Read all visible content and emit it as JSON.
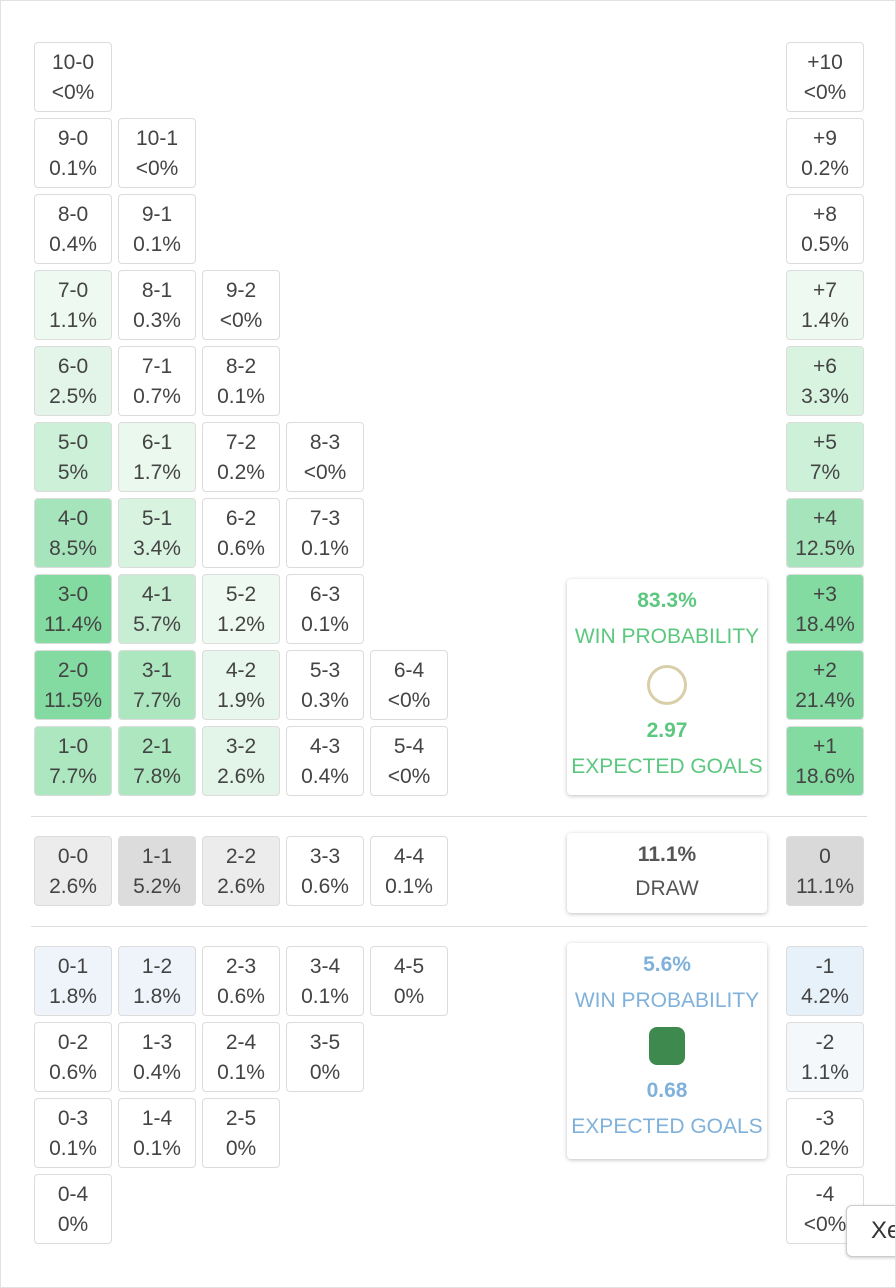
{
  "home_rows": [
    [
      {
        "score": "10-0",
        "prob": "<0%",
        "bg": "#ffffff"
      }
    ],
    [
      {
        "score": "9-0",
        "prob": "0.1%",
        "bg": "#ffffff"
      },
      {
        "score": "10-1",
        "prob": "<0%",
        "bg": "#ffffff"
      }
    ],
    [
      {
        "score": "8-0",
        "prob": "0.4%",
        "bg": "#ffffff"
      },
      {
        "score": "9-1",
        "prob": "0.1%",
        "bg": "#ffffff"
      }
    ],
    [
      {
        "score": "7-0",
        "prob": "1.1%",
        "bg": "#eef9f1"
      },
      {
        "score": "8-1",
        "prob": "0.3%",
        "bg": "#ffffff"
      },
      {
        "score": "9-2",
        "prob": "<0%",
        "bg": "#ffffff"
      }
    ],
    [
      {
        "score": "6-0",
        "prob": "2.5%",
        "bg": "#e2f5e8"
      },
      {
        "score": "7-1",
        "prob": "0.7%",
        "bg": "#ffffff"
      },
      {
        "score": "8-2",
        "prob": "0.1%",
        "bg": "#ffffff"
      }
    ],
    [
      {
        "score": "5-0",
        "prob": "5%",
        "bg": "#cdf0d8"
      },
      {
        "score": "6-1",
        "prob": "1.7%",
        "bg": "#eaf8ee"
      },
      {
        "score": "7-2",
        "prob": "0.2%",
        "bg": "#ffffff"
      },
      {
        "score": "8-3",
        "prob": "<0%",
        "bg": "#ffffff"
      }
    ],
    [
      {
        "score": "4-0",
        "prob": "8.5%",
        "bg": "#a6e5bb"
      },
      {
        "score": "5-1",
        "prob": "3.4%",
        "bg": "#d9f3e1"
      },
      {
        "score": "6-2",
        "prob": "0.6%",
        "bg": "#ffffff"
      },
      {
        "score": "7-3",
        "prob": "0.1%",
        "bg": "#ffffff"
      }
    ],
    [
      {
        "score": "3-0",
        "prob": "11.4%",
        "bg": "#84dba1"
      },
      {
        "score": "4-1",
        "prob": "5.7%",
        "bg": "#c7eed3"
      },
      {
        "score": "5-2",
        "prob": "1.2%",
        "bg": "#eef9f1"
      },
      {
        "score": "6-3",
        "prob": "0.1%",
        "bg": "#ffffff"
      }
    ],
    [
      {
        "score": "2-0",
        "prob": "11.5%",
        "bg": "#84dba1"
      },
      {
        "score": "3-1",
        "prob": "7.7%",
        "bg": "#ade7c0"
      },
      {
        "score": "4-2",
        "prob": "1.9%",
        "bg": "#e8f7ed"
      },
      {
        "score": "5-3",
        "prob": "0.3%",
        "bg": "#ffffff"
      },
      {
        "score": "6-4",
        "prob": "<0%",
        "bg": "#ffffff"
      }
    ],
    [
      {
        "score": "1-0",
        "prob": "7.7%",
        "bg": "#ade7c0"
      },
      {
        "score": "2-1",
        "prob": "7.8%",
        "bg": "#ade7c0"
      },
      {
        "score": "3-2",
        "prob": "2.6%",
        "bg": "#e2f5e8"
      },
      {
        "score": "4-3",
        "prob": "0.4%",
        "bg": "#ffffff"
      },
      {
        "score": "5-4",
        "prob": "<0%",
        "bg": "#ffffff"
      }
    ]
  ],
  "home_margins": [
    {
      "score": "+10",
      "prob": "<0%",
      "bg": "#ffffff"
    },
    {
      "score": "+9",
      "prob": "0.2%",
      "bg": "#ffffff"
    },
    {
      "score": "+8",
      "prob": "0.5%",
      "bg": "#ffffff"
    },
    {
      "score": "+7",
      "prob": "1.4%",
      "bg": "#eef9f1"
    },
    {
      "score": "+6",
      "prob": "3.3%",
      "bg": "#d9f3e1"
    },
    {
      "score": "+5",
      "prob": "7%",
      "bg": "#cdf0d8"
    },
    {
      "score": "+4",
      "prob": "12.5%",
      "bg": "#a6e5bb"
    },
    {
      "score": "+3",
      "prob": "18.4%",
      "bg": "#84dba1"
    },
    {
      "score": "+2",
      "prob": "21.4%",
      "bg": "#84dba1"
    },
    {
      "score": "+1",
      "prob": "18.6%",
      "bg": "#84dba1"
    }
  ],
  "draw_row": [
    {
      "score": "0-0",
      "prob": "2.6%",
      "bg": "#ececec"
    },
    {
      "score": "1-1",
      "prob": "5.2%",
      "bg": "#dcdcdc"
    },
    {
      "score": "2-2",
      "prob": "2.6%",
      "bg": "#ececec"
    },
    {
      "score": "3-3",
      "prob": "0.6%",
      "bg": "#ffffff"
    },
    {
      "score": "4-4",
      "prob": "0.1%",
      "bg": "#ffffff"
    }
  ],
  "draw_margin": {
    "score": "0",
    "prob": "11.1%",
    "bg": "#d9d9d9"
  },
  "away_rows": [
    [
      {
        "score": "0-1",
        "prob": "1.8%",
        "bg": "#eef4fa"
      },
      {
        "score": "1-2",
        "prob": "1.8%",
        "bg": "#eef4fa"
      },
      {
        "score": "2-3",
        "prob": "0.6%",
        "bg": "#ffffff"
      },
      {
        "score": "3-4",
        "prob": "0.1%",
        "bg": "#ffffff"
      },
      {
        "score": "4-5",
        "prob": "0%",
        "bg": "#ffffff"
      }
    ],
    [
      {
        "score": "0-2",
        "prob": "0.6%",
        "bg": "#ffffff"
      },
      {
        "score": "1-3",
        "prob": "0.4%",
        "bg": "#ffffff"
      },
      {
        "score": "2-4",
        "prob": "0.1%",
        "bg": "#ffffff"
      },
      {
        "score": "3-5",
        "prob": "0%",
        "bg": "#ffffff"
      }
    ],
    [
      {
        "score": "0-3",
        "prob": "0.1%",
        "bg": "#ffffff"
      },
      {
        "score": "1-4",
        "prob": "0.1%",
        "bg": "#ffffff"
      },
      {
        "score": "2-5",
        "prob": "0%",
        "bg": "#ffffff"
      }
    ],
    [
      {
        "score": "0-4",
        "prob": "0%",
        "bg": "#ffffff"
      }
    ]
  ],
  "away_margins": [
    {
      "score": "-1",
      "prob": "4.2%",
      "bg": "#e7f1f9"
    },
    {
      "score": "-2",
      "prob": "1.1%",
      "bg": "#f4f8fb"
    },
    {
      "score": "-3",
      "prob": "0.2%",
      "bg": "#ffffff"
    },
    {
      "score": "-4",
      "prob": "<0%",
      "bg": "#ffffff"
    }
  ],
  "home_summary": {
    "win_pct": "83.3%",
    "win_label": "WIN PROBABILITY",
    "xg": "2.97",
    "xg_label": "EXPECTED GOALS",
    "color": "#5cc77f"
  },
  "draw_summary": {
    "pct": "11.1%",
    "label": "DRAW"
  },
  "away_summary": {
    "win_pct": "5.6%",
    "win_label": "WIN PROBABILITY",
    "xg": "0.68",
    "xg_label": "EXPECTED GOALS",
    "color": "#7fb1da"
  },
  "button": "Xe"
}
